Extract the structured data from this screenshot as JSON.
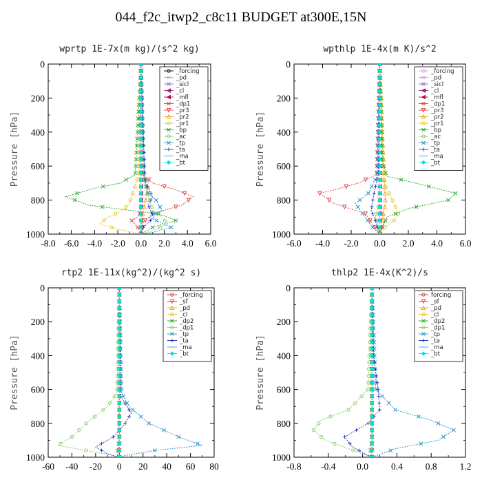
{
  "title": "044_f2c_itwp2_c8c11  BUDGET at300E,15N",
  "chart_data": [
    {
      "type": "line",
      "title": "wprtp  1E-7x(m kg)/(s^2 kg)",
      "ylabel": "Pressure [hPa]",
      "xlim": [
        -8,
        6
      ],
      "ylim": [
        0,
        1000
      ],
      "xticks": [
        "-8.0",
        "-6.0",
        "-4.0",
        "-2.0",
        "0.0",
        "2.0",
        "4.0",
        "6.0"
      ],
      "yticks": [
        "0",
        "200",
        "400",
        "600",
        "800",
        "1000"
      ],
      "grid": false,
      "legend": "top-right",
      "series": [
        {
          "name": "_forcing",
          "color": "#000000",
          "marker": "o",
          "x": [
            0,
            0,
            0,
            0
          ],
          "y": [
            0,
            300,
            700,
            1000
          ]
        },
        {
          "name": "_pd",
          "color": "#c8a0d8",
          "marker": "x",
          "x": [
            0,
            0
          ],
          "y": [
            0,
            1000
          ]
        },
        {
          "name": "_sicl",
          "color": "#9060c0",
          "marker": "x",
          "x": [
            0,
            0
          ],
          "y": [
            0,
            1000
          ]
        },
        {
          "name": "_cl",
          "color": "#a02070",
          "marker": "<",
          "x": [
            0,
            0
          ],
          "y": [
            0,
            1000
          ]
        },
        {
          "name": "_mfl",
          "color": "#b01040",
          "marker": "<",
          "x": [
            0,
            0
          ],
          "y": [
            0,
            1000
          ]
        },
        {
          "name": "_dp1",
          "color": "#e03030",
          "marker": "x",
          "x": [
            0,
            0,
            -0.1,
            -0.3,
            -0.8,
            -0.3,
            0
          ],
          "y": [
            0,
            840,
            880,
            900,
            920,
            960,
            1000
          ]
        },
        {
          "name": "_pr3",
          "color": "#e04040",
          "marker": "v",
          "x": [
            0,
            0,
            1,
            3,
            4.5,
            3.5,
            1,
            0.2,
            0
          ],
          "y": [
            0,
            640,
            700,
            740,
            780,
            830,
            880,
            930,
            1000
          ]
        },
        {
          "name": "_pr2",
          "color": "#f0a020",
          "marker": "^",
          "x": [
            0,
            0,
            0.6,
            0.4,
            0.1,
            0
          ],
          "y": [
            0,
            640,
            700,
            800,
            900,
            1000
          ]
        },
        {
          "name": "_pr1",
          "color": "#e8c020",
          "marker": "o",
          "x": [
            0,
            -0.2,
            -1,
            -1.6,
            -2.8,
            -3.6,
            -2,
            0
          ],
          "y": [
            0,
            650,
            820,
            860,
            900,
            940,
            970,
            1000
          ]
        },
        {
          "name": "_bp",
          "color": "#20a020",
          "marker": "x",
          "x": [
            0,
            -0.5,
            -1.8,
            -4.0,
            -6.5,
            -4.5,
            -1,
            1.5,
            3,
            1,
            0
          ],
          "y": [
            0,
            650,
            700,
            730,
            780,
            830,
            860,
            880,
            920,
            960,
            1000
          ]
        },
        {
          "name": "_ac",
          "color": "#80d060",
          "marker": "o",
          "x": [
            0,
            0.3,
            1,
            1.8,
            2.3,
            1,
            0
          ],
          "y": [
            0,
            700,
            860,
            900,
            940,
            980,
            1000
          ]
        },
        {
          "name": "_tp",
          "color": "#2090c0",
          "marker": "x",
          "x": [
            0,
            0.2,
            0.6,
            1.3,
            1.8,
            0.7,
            2.6,
            1,
            0
          ],
          "y": [
            0,
            650,
            760,
            800,
            860,
            900,
            960,
            990,
            1000
          ]
        },
        {
          "name": "_ta",
          "color": "#2030c0",
          "marker": "+",
          "x": [
            0,
            0.3,
            0.4,
            1,
            0.6,
            1.1,
            0.2,
            0
          ],
          "y": [
            0,
            640,
            700,
            780,
            830,
            900,
            960,
            1000
          ]
        },
        {
          "name": "_ma",
          "color": "#20b0d0",
          "marker": "-",
          "x": [
            0,
            0
          ],
          "y": [
            0,
            1000
          ]
        },
        {
          "name": "_bt",
          "color": "#00e0e0",
          "marker": "D",
          "x": [
            0,
            0
          ],
          "y": [
            0,
            1000
          ]
        }
      ]
    },
    {
      "type": "line",
      "title": "wpthlp  1E-4x(m K)/s^2",
      "ylabel": "Pressure [hPa]",
      "xlim": [
        -6,
        6
      ],
      "ylim": [
        0,
        1000
      ],
      "xticks": [
        "-6.0",
        "-4.0",
        "-2.0",
        "0.0",
        "2.0",
        "4.0",
        "6.0"
      ],
      "yticks": [
        "0",
        "200",
        "400",
        "600",
        "800",
        "1000"
      ],
      "grid": false,
      "legend": "top-right",
      "series": [
        {
          "name": "_forcing",
          "color": "#c8a0d8",
          "marker": "o",
          "x": [
            0,
            0
          ],
          "y": [
            0,
            1000
          ]
        },
        {
          "name": "_pd",
          "color": "#c8a0d8",
          "marker": "x",
          "x": [
            0,
            0
          ],
          "y": [
            0,
            1000
          ]
        },
        {
          "name": "_sicl",
          "color": "#9060c0",
          "marker": "x",
          "x": [
            0,
            0
          ],
          "y": [
            0,
            1000
          ]
        },
        {
          "name": "_cl",
          "color": "#a02070",
          "marker": "<",
          "x": [
            0,
            0
          ],
          "y": [
            0,
            1000
          ]
        },
        {
          "name": "_mfl",
          "color": "#b01040",
          "marker": "<",
          "x": [
            0,
            0
          ],
          "y": [
            0,
            1000
          ]
        },
        {
          "name": "_dp1",
          "color": "#e03030",
          "marker": "x",
          "x": [
            0,
            0,
            0.4,
            0.1,
            0
          ],
          "y": [
            0,
            860,
            920,
            960,
            1000
          ]
        },
        {
          "name": "_pr3",
          "color": "#e04040",
          "marker": "v",
          "x": [
            0,
            -0.2,
            -1.5,
            -3.2,
            -4.2,
            -3.2,
            -1,
            0
          ],
          "y": [
            0,
            650,
            700,
            740,
            760,
            820,
            880,
            1000
          ]
        },
        {
          "name": "_pr2",
          "color": "#f0a020",
          "marker": "^",
          "x": [
            0,
            0.3,
            0.4,
            0.2,
            0
          ],
          "y": [
            0,
            650,
            820,
            900,
            1000
          ]
        },
        {
          "name": "_pr1",
          "color": "#e8c020",
          "marker": "o",
          "x": [
            0,
            0.3,
            1,
            1.3,
            1,
            0.2,
            0
          ],
          "y": [
            0,
            700,
            820,
            880,
            920,
            970,
            1000
          ]
        },
        {
          "name": "_bp",
          "color": "#20a020",
          "marker": "x",
          "x": [
            0,
            0.2,
            0.5,
            2.5,
            5.3,
            4.8,
            2,
            0.5,
            0
          ],
          "y": [
            0,
            580,
            660,
            700,
            760,
            800,
            850,
            900,
            1000
          ]
        },
        {
          "name": "_ac",
          "color": "#80d060",
          "marker": "o",
          "x": [
            0,
            0,
            -0.3,
            -0.1,
            0
          ],
          "y": [
            0,
            800,
            900,
            960,
            1000
          ]
        },
        {
          "name": "_tp",
          "color": "#2090c0",
          "marker": "x",
          "x": [
            0,
            -0.2,
            -0.8,
            -1.7,
            -1.2,
            -0.5,
            0
          ],
          "y": [
            0,
            660,
            760,
            820,
            880,
            960,
            1000
          ]
        },
        {
          "name": "_ta",
          "color": "#2030c0",
          "marker": "+",
          "x": [
            0,
            -0.1,
            -0.4,
            -0.6,
            -0.3,
            0
          ],
          "y": [
            0,
            650,
            760,
            860,
            920,
            1000
          ]
        },
        {
          "name": "_ma",
          "color": "#20b0d0",
          "marker": "-",
          "x": [
            0,
            0
          ],
          "y": [
            0,
            1000
          ]
        },
        {
          "name": "_bt",
          "color": "#00e0e0",
          "marker": "D",
          "x": [
            0,
            0
          ],
          "y": [
            0,
            1000
          ]
        }
      ]
    },
    {
      "type": "line",
      "title": "rtp2  1E-11x(kg^2)/(kg^2 s)",
      "ylabel": "Pressure [hPa]",
      "xlim": [
        -60,
        80
      ],
      "ylim": [
        0,
        1000
      ],
      "xticks": [
        "-60",
        "-40",
        "-20",
        "0",
        "20",
        "40",
        "60",
        "80"
      ],
      "yticks": [
        "0",
        "200",
        "400",
        "600",
        "800",
        "1000"
      ],
      "grid": false,
      "legend": "top-right",
      "series": [
        {
          "name": "_forcing",
          "color": "#e03030",
          "marker": "o",
          "x": [
            0,
            0
          ],
          "y": [
            0,
            1000
          ]
        },
        {
          "name": "_sf",
          "color": "#e04040",
          "marker": "v",
          "x": [
            0,
            0
          ],
          "y": [
            0,
            1000
          ]
        },
        {
          "name": "_pd",
          "color": "#f0a020",
          "marker": "^",
          "x": [
            0,
            0
          ],
          "y": [
            0,
            1000
          ]
        },
        {
          "name": "_cl",
          "color": "#e8c020",
          "marker": "o",
          "x": [
            0,
            0
          ],
          "y": [
            0,
            1000
          ]
        },
        {
          "name": "_dp2",
          "color": "#20a020",
          "marker": "x",
          "x": [
            0,
            0,
            -1,
            -2,
            0
          ],
          "y": [
            0,
            900,
            940,
            980,
            1000
          ]
        },
        {
          "name": "_dp1",
          "color": "#80d060",
          "marker": "o",
          "x": [
            0,
            -2,
            -10,
            -28,
            -40,
            -52,
            -28,
            -5,
            0
          ],
          "y": [
            0,
            620,
            700,
            800,
            880,
            930,
            960,
            990,
            1000
          ]
        },
        {
          "name": "_tp",
          "color": "#2090c0",
          "marker": "x",
          "x": [
            0,
            2,
            8,
            25,
            50,
            70,
            30,
            5,
            0
          ],
          "y": [
            0,
            620,
            700,
            800,
            880,
            930,
            960,
            990,
            1000
          ]
        },
        {
          "name": "_ta",
          "color": "#2030c0",
          "marker": "+",
          "x": [
            0,
            1,
            10,
            5,
            -5,
            -20,
            -10,
            0
          ],
          "y": [
            0,
            640,
            740,
            800,
            880,
            940,
            980,
            1000
          ]
        },
        {
          "name": "_ma",
          "color": "#20b0d0",
          "marker": "-",
          "x": [
            0,
            0
          ],
          "y": [
            0,
            1000
          ]
        },
        {
          "name": "_bt",
          "color": "#00e0e0",
          "marker": "D",
          "x": [
            0,
            0
          ],
          "y": [
            0,
            1000
          ]
        }
      ]
    },
    {
      "type": "line",
      "title": "thlp2  1E-4x(K^2)/s",
      "ylabel": "Pressure [hPa]",
      "xlim": [
        -1,
        1.2
      ],
      "ylim": [
        0,
        1000
      ],
      "xticks": [
        "-0.8",
        "-0.4",
        "0.0",
        "0.4",
        "0.8",
        "1.2"
      ],
      "yticks": [
        "0",
        "200",
        "400",
        "600",
        "800",
        "1000"
      ],
      "grid": false,
      "legend": "top-right",
      "series": [
        {
          "name": "forcing",
          "color": "#e03030",
          "marker": "o",
          "x": [
            0,
            0
          ],
          "y": [
            0,
            1000
          ]
        },
        {
          "name": "_sf",
          "color": "#e04040",
          "marker": "v",
          "x": [
            0,
            0
          ],
          "y": [
            0,
            1000
          ]
        },
        {
          "name": "_pd",
          "color": "#f0a020",
          "marker": "^",
          "x": [
            0,
            0
          ],
          "y": [
            0,
            1000
          ]
        },
        {
          "name": "_cl",
          "color": "#e8c020",
          "marker": "o",
          "x": [
            0,
            0
          ],
          "y": [
            0,
            1000
          ]
        },
        {
          "name": "_dp2",
          "color": "#20a020",
          "marker": "x",
          "x": [
            0,
            0,
            -0.02,
            0
          ],
          "y": [
            0,
            900,
            960,
            1000
          ]
        },
        {
          "name": "_dp1",
          "color": "#80d060",
          "marker": "o",
          "x": [
            0,
            -0.05,
            -0.3,
            -0.65,
            -0.75,
            -0.6,
            -0.3,
            0
          ],
          "y": [
            0,
            600,
            720,
            780,
            840,
            900,
            950,
            1000
          ]
        },
        {
          "name": "_tp",
          "color": "#2090c0",
          "marker": "x",
          "x": [
            0,
            0.05,
            0.3,
            0.75,
            1.05,
            0.85,
            0.3,
            0
          ],
          "y": [
            0,
            600,
            720,
            780,
            840,
            900,
            950,
            1000
          ]
        },
        {
          "name": "_ta",
          "color": "#2030c0",
          "marker": "+",
          "x": [
            0,
            0.02,
            0.08,
            0.1,
            -0.05,
            -0.35,
            -0.25,
            0
          ],
          "y": [
            0,
            400,
            600,
            720,
            800,
            880,
            940,
            1000
          ]
        },
        {
          "name": "_ma",
          "color": "#20b0d0",
          "marker": "-",
          "x": [
            0,
            0
          ],
          "y": [
            0,
            1000
          ]
        },
        {
          "name": "_bt",
          "color": "#00e0e0",
          "marker": "D",
          "x": [
            0,
            0
          ],
          "y": [
            0,
            1000
          ]
        }
      ]
    }
  ]
}
